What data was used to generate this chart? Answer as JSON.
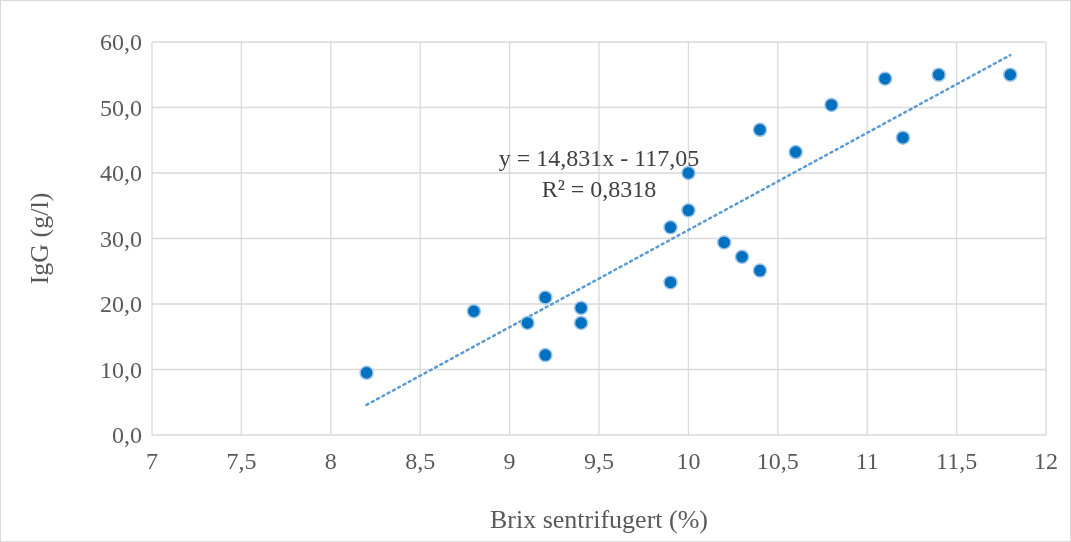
{
  "chart_data": {
    "type": "scatter",
    "xlabel": "Brix sentrifugert (%)",
    "ylabel": "IgG (g/l)",
    "annotations": [
      "y = 14,831x - 117,05",
      "R² = 0,8318"
    ],
    "xlim": [
      7,
      12
    ],
    "ylim": [
      0,
      60
    ],
    "xticks": [
      7,
      {
        "value": 7.5,
        "label": "7,5"
      },
      8,
      {
        "value": 8.5,
        "label": "8,5"
      },
      9,
      {
        "value": 9.5,
        "label": "9,5"
      },
      10,
      {
        "value": 10.5,
        "label": "10,5"
      },
      11,
      {
        "value": 11.5,
        "label": "11,5"
      },
      12
    ],
    "yticks": [
      {
        "value": 0,
        "label": "0,0"
      },
      {
        "value": 10,
        "label": "10,0"
      },
      {
        "value": 20,
        "label": "20,0"
      },
      {
        "value": 30,
        "label": "30,0"
      },
      {
        "value": 40,
        "label": "40,0"
      },
      {
        "value": 50,
        "label": "50,0"
      },
      {
        "value": 60,
        "label": "60,0"
      }
    ],
    "grid": true,
    "series": [
      {
        "marker": "circle",
        "color": "#0070c0",
        "x": [
          8.2,
          8.8,
          9.1,
          9.2,
          9.2,
          9.4,
          9.4,
          9.9,
          9.9,
          10.0,
          10.0,
          10.2,
          10.3,
          10.4,
          10.4,
          10.6,
          10.8,
          11.1,
          11.2,
          11.4,
          11.8
        ],
        "values": [
          9.5,
          18.9,
          17.1,
          21.0,
          12.2,
          19.4,
          17.1,
          31.7,
          23.3,
          40.0,
          34.3,
          29.4,
          27.2,
          25.1,
          46.6,
          43.2,
          50.4,
          54.4,
          45.4,
          55.0,
          55.0
        ]
      },
      {
        "type": "line",
        "color": "#5b9bd5",
        "line_style": "dotted",
        "x": [
          8.2,
          11.8
        ],
        "values": [
          4.6,
          58.0
        ]
      }
    ]
  }
}
